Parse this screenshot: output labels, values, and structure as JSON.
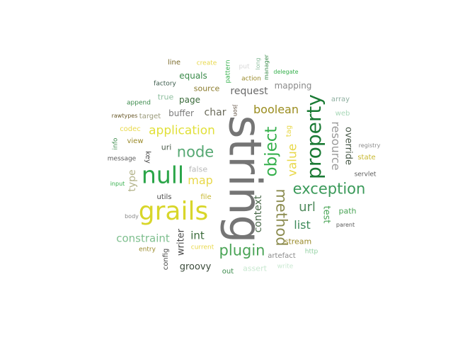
{
  "words": [
    {
      "text": "string",
      "color": "#757575",
      "rotated": true
    },
    {
      "text": "grails",
      "color": "#d8d62a",
      "rotated": false
    },
    {
      "text": "null",
      "color": "#2aa548",
      "rotated": false
    },
    {
      "text": "property",
      "color": "#1a7a34",
      "rotated": true
    },
    {
      "text": "object",
      "color": "#35b04c",
      "rotated": true
    },
    {
      "text": "exception",
      "color": "#3b9a5a",
      "rotated": false
    },
    {
      "text": "method",
      "color": "#8c8c50",
      "rotated": true
    },
    {
      "text": "node",
      "color": "#56a873",
      "rotated": false
    },
    {
      "text": "plugin",
      "color": "#4aa456",
      "rotated": false
    },
    {
      "text": "application",
      "color": "#e1e03a",
      "rotated": false
    },
    {
      "text": "value",
      "color": "#e8d84a",
      "rotated": true
    },
    {
      "text": "resource",
      "color": "#9a9a9a",
      "rotated": true
    },
    {
      "text": "boolean",
      "color": "#9a8c1e",
      "rotated": false
    },
    {
      "text": "url",
      "color": "#4f8a5c",
      "rotated": false
    },
    {
      "text": "constraint",
      "color": "#7fbf8f",
      "rotated": false
    },
    {
      "text": "map",
      "color": "#e8d84a",
      "rotated": false
    },
    {
      "text": "list",
      "color": "#3d8a5a",
      "rotated": false
    },
    {
      "text": "context",
      "color": "#4a6a4a",
      "rotated": true
    },
    {
      "text": "request",
      "color": "#6a6a6a",
      "rotated": false
    },
    {
      "text": "type",
      "color": "#b3b38a",
      "rotated": true
    },
    {
      "text": "override",
      "color": "#4a5a4a",
      "rotated": true
    },
    {
      "text": "writer",
      "color": "#4a4a4a",
      "rotated": true
    },
    {
      "text": "char",
      "color": "#6a6a5a",
      "rotated": false
    },
    {
      "text": "int",
      "color": "#3a6a3a",
      "rotated": false
    },
    {
      "text": "test",
      "color": "#4aa456",
      "rotated": true
    },
    {
      "text": "groovy",
      "color": "#3a4a3a",
      "rotated": false
    },
    {
      "text": "buffer",
      "color": "#7a7a7a",
      "rotated": false
    },
    {
      "text": "mapping",
      "color": "#8a8a8a",
      "rotated": false
    },
    {
      "text": "source",
      "color": "#8a7a2a",
      "rotated": false
    },
    {
      "text": "equals",
      "color": "#3a8a4a",
      "rotated": false
    },
    {
      "text": "page",
      "color": "#3a6a3a",
      "rotated": false
    },
    {
      "text": "path",
      "color": "#4aa456",
      "rotated": false
    },
    {
      "text": "stream",
      "color": "#9a8a2a",
      "rotated": false
    },
    {
      "text": "false",
      "color": "#b8b8b8",
      "rotated": false
    },
    {
      "text": "uri",
      "color": "#4a5a4a",
      "rotated": false
    },
    {
      "text": "true",
      "color": "#8fbf9f",
      "rotated": false
    },
    {
      "text": "key",
      "color": "#4a4a4a",
      "rotated": true
    },
    {
      "text": "web",
      "color": "#a8d8b8",
      "rotated": false
    },
    {
      "text": "array",
      "color": "#8fafa0",
      "rotated": false
    },
    {
      "text": "state",
      "color": "#c8b830",
      "rotated": false
    },
    {
      "text": "file",
      "color": "#c8b830",
      "rotated": false
    },
    {
      "text": "tag",
      "color": "#e8d84a",
      "rotated": true
    },
    {
      "text": "utils",
      "color": "#4a4a4a",
      "rotated": false
    },
    {
      "text": "assert",
      "color": "#c8e8d0",
      "rotated": false
    },
    {
      "text": "line",
      "color": "#7a6a2a",
      "rotated": false
    },
    {
      "text": "target",
      "color": "#9a9a7a",
      "rotated": false
    },
    {
      "text": "codec",
      "color": "#e8d84a",
      "rotated": false
    },
    {
      "text": "view",
      "color": "#9a8a2a",
      "rotated": false
    },
    {
      "text": "current",
      "color": "#e8d84a",
      "rotated": false
    },
    {
      "text": "config",
      "color": "#4a4a4a",
      "rotated": true
    },
    {
      "text": "artefact",
      "color": "#8a8a8a",
      "rotated": false
    },
    {
      "text": "factory",
      "color": "#3a5a4a",
      "rotated": false
    },
    {
      "text": "create",
      "color": "#e8d84a",
      "rotated": false
    },
    {
      "text": "action",
      "color": "#9a8a2a",
      "rotated": false
    },
    {
      "text": "pattern",
      "color": "#35b04c",
      "rotated": true
    },
    {
      "text": "put",
      "color": "#d8d8d8",
      "rotated": false
    },
    {
      "text": "manager",
      "color": "#3a8a4a",
      "rotated": true
    },
    {
      "text": "long",
      "color": "#8fbf9f",
      "rotated": true
    },
    {
      "text": "delegate",
      "color": "#35b04c",
      "rotated": false
    },
    {
      "text": "append",
      "color": "#3a8a4a",
      "rotated": false
    },
    {
      "text": "rawtypes",
      "color": "#6a5a2a",
      "rotated": false
    },
    {
      "text": "json",
      "color": "#5a4a3a",
      "rotated": true
    },
    {
      "text": "info",
      "color": "#3a8a4a",
      "rotated": true
    },
    {
      "text": "message",
      "color": "#5a5a5a",
      "rotated": false
    },
    {
      "text": "input",
      "color": "#35b04c",
      "rotated": false
    },
    {
      "text": "body",
      "color": "#8a8a8a",
      "rotated": false
    },
    {
      "text": "entry",
      "color": "#9a8a2a",
      "rotated": false
    },
    {
      "text": "out",
      "color": "#3a8a4a",
      "rotated": false
    },
    {
      "text": "http",
      "color": "#8fcf9f",
      "rotated": false
    },
    {
      "text": "write",
      "color": "#c8e8d0",
      "rotated": false
    },
    {
      "text": "servlet",
      "color": "#5a5a5a",
      "rotated": false
    },
    {
      "text": "registry",
      "color": "#8a8a8a",
      "rotated": false
    },
    {
      "text": "parent",
      "color": "#5a5a5a",
      "rotated": false
    }
  ]
}
